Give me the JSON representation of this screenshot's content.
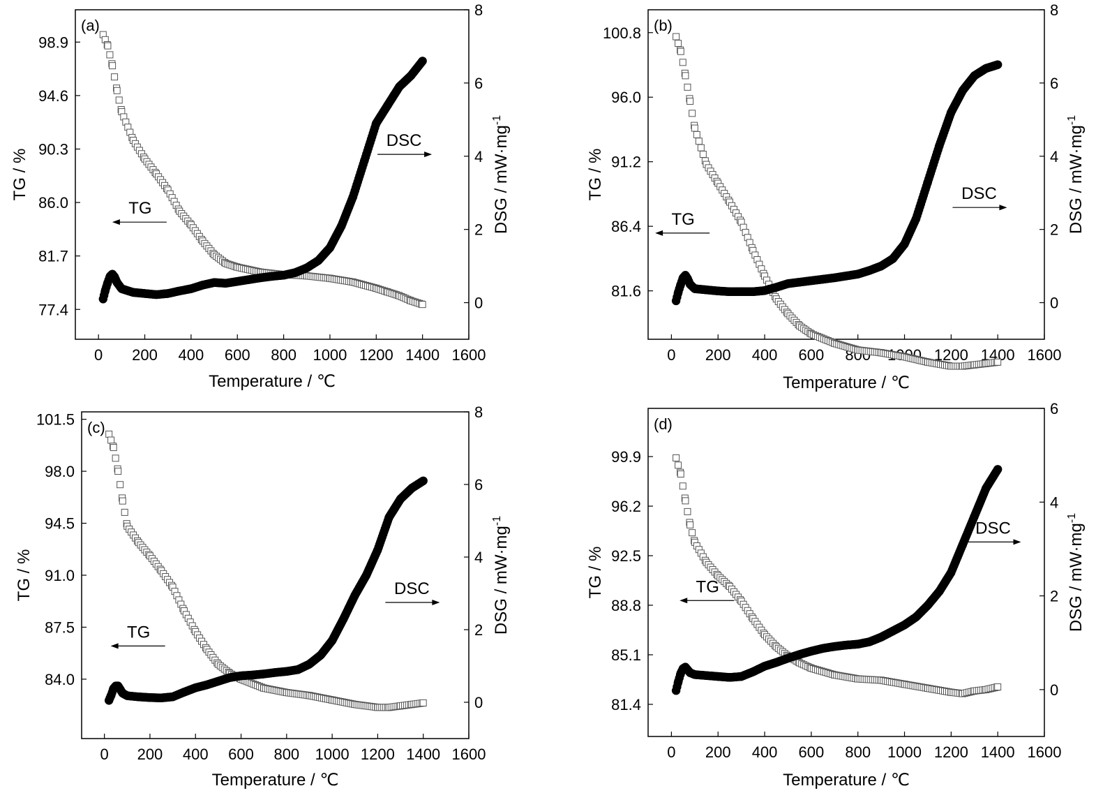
{
  "figure": {
    "xlabel": "Temperature / ℃",
    "ylabel_left": "TG / %",
    "ylabel_right_main": "DSG / mW·mg",
    "ylabel_right_sup": "-1",
    "tg_marker": "open-square",
    "dsc_marker": "filled-circle",
    "tg_color": "#555555",
    "dsc_color": "#000000"
  },
  "chart_data": [
    {
      "type": "scatter",
      "panel": "(a)",
      "xlim": [
        -100,
        1600
      ],
      "xticks": [
        0,
        200,
        400,
        600,
        800,
        1000,
        1200,
        1400,
        1600
      ],
      "left_axis": {
        "label": "TG / %",
        "lim": [
          75.0,
          101.5
        ],
        "ticks": [
          77.4,
          81.7,
          86.0,
          90.3,
          94.6,
          98.9
        ],
        "tick_labels": [
          "77.4",
          "81.7",
          "86.0",
          "90.3",
          "94.6",
          "98.9"
        ]
      },
      "right_axis": {
        "label": "DSG / mW·mg-1",
        "lim": [
          -1,
          8
        ],
        "ticks": [
          0,
          2,
          4,
          6,
          8
        ]
      },
      "annotations": [
        {
          "text": "TG",
          "x": 180,
          "y_right": 2.2,
          "arrow": "left"
        },
        {
          "text": "DSC",
          "x": 1320,
          "y_right": 4.05,
          "arrow": "right"
        }
      ],
      "series": [
        {
          "name": "TG",
          "axis": "left",
          "x": [
            20,
            40,
            60,
            80,
            100,
            150,
            200,
            250,
            300,
            350,
            400,
            450,
            500,
            550,
            600,
            700,
            800,
            900,
            1000,
            1100,
            1200,
            1250,
            1300,
            1350,
            1400
          ],
          "y": [
            99.5,
            98.6,
            97.0,
            95.0,
            93.3,
            91.0,
            89.5,
            88.3,
            87.0,
            85.3,
            84.2,
            82.9,
            81.8,
            81.1,
            80.8,
            80.4,
            80.2,
            80.1,
            79.9,
            79.6,
            79.1,
            78.8,
            78.5,
            78.1,
            77.8
          ]
        },
        {
          "name": "DSC",
          "axis": "right",
          "x": [
            20,
            30,
            40,
            50,
            60,
            70,
            80,
            100,
            150,
            200,
            250,
            300,
            350,
            400,
            450,
            500,
            550,
            600,
            650,
            700,
            750,
            800,
            850,
            900,
            950,
            1000,
            1050,
            1100,
            1150,
            1200,
            1250,
            1300,
            1350,
            1400
          ],
          "y": [
            0.1,
            0.35,
            0.55,
            0.72,
            0.78,
            0.7,
            0.55,
            0.38,
            0.28,
            0.25,
            0.22,
            0.25,
            0.32,
            0.38,
            0.48,
            0.55,
            0.53,
            0.58,
            0.63,
            0.68,
            0.72,
            0.75,
            0.82,
            0.95,
            1.15,
            1.5,
            2.1,
            2.9,
            3.9,
            4.9,
            5.4,
            5.9,
            6.2,
            6.6
          ]
        }
      ]
    },
    {
      "type": "scatter",
      "panel": "(b)",
      "xlim": [
        -100,
        1600
      ],
      "xticks": [
        0,
        200,
        400,
        600,
        800,
        1000,
        1200,
        1400,
        1600
      ],
      "left_axis": {
        "label": "TG / %",
        "lim": [
          78.0,
          102.5
        ],
        "ticks": [
          81.6,
          86.4,
          91.2,
          96.0,
          100.8
        ],
        "tick_labels": [
          "81.6",
          "86.4",
          "91.2",
          "96.0",
          "100.8"
        ]
      },
      "right_axis": {
        "label": "DSG / mW·mg-1",
        "lim": [
          -1,
          8
        ],
        "ticks": [
          0,
          2,
          4,
          6,
          8
        ]
      },
      "annotations": [
        {
          "text": "TG",
          "x": 50,
          "y_right": 1.9,
          "arrow": "left"
        },
        {
          "text": "DSC",
          "x": 1320,
          "y_right": 2.6,
          "arrow": "right"
        }
      ],
      "series": [
        {
          "name": "TG",
          "axis": "left",
          "x": [
            20,
            40,
            60,
            80,
            100,
            150,
            200,
            250,
            300,
            350,
            400,
            450,
            500,
            550,
            600,
            700,
            800,
            900,
            1000,
            1100,
            1200,
            1250,
            1300,
            1350,
            1400
          ],
          "y": [
            100.5,
            99.4,
            97.6,
            95.7,
            93.7,
            91.0,
            89.6,
            88.2,
            86.7,
            84.6,
            82.7,
            81.0,
            79.9,
            79.0,
            78.4,
            77.7,
            77.2,
            77.0,
            76.7,
            76.3,
            76.0,
            76.0,
            76.1,
            76.2,
            76.3
          ]
        },
        {
          "name": "DSC",
          "axis": "right",
          "x": [
            20,
            30,
            40,
            50,
            60,
            70,
            80,
            100,
            150,
            200,
            250,
            300,
            350,
            400,
            450,
            500,
            550,
            600,
            650,
            700,
            750,
            800,
            850,
            900,
            950,
            1000,
            1050,
            1100,
            1150,
            1200,
            1250,
            1300,
            1350,
            1400
          ],
          "y": [
            0.05,
            0.3,
            0.5,
            0.68,
            0.75,
            0.65,
            0.5,
            0.38,
            0.35,
            0.32,
            0.3,
            0.3,
            0.3,
            0.33,
            0.42,
            0.52,
            0.56,
            0.6,
            0.64,
            0.68,
            0.73,
            0.78,
            0.88,
            1.0,
            1.2,
            1.6,
            2.3,
            3.3,
            4.3,
            5.2,
            5.8,
            6.2,
            6.4,
            6.5
          ]
        }
      ]
    },
    {
      "type": "scatter",
      "panel": "(c)",
      "xlim": [
        -100,
        1600
      ],
      "xticks": [
        0,
        200,
        400,
        600,
        800,
        1000,
        1200,
        1400,
        1600
      ],
      "left_axis": {
        "label": "TG / %",
        "lim": [
          80.0,
          102.0
        ],
        "ticks": [
          84.0,
          87.5,
          91.0,
          94.5,
          98.0,
          101.5
        ],
        "tick_labels": [
          "84.0",
          "87.5",
          "91.0",
          "94.5",
          "98.0",
          "101.5"
        ]
      },
      "right_axis": {
        "label": "DSG / mW·mg-1",
        "lim": [
          -1,
          8
        ],
        "ticks": [
          0,
          2,
          4,
          6,
          8
        ]
      },
      "annotations": [
        {
          "text": "TG",
          "x": 150,
          "y_right": 1.55,
          "arrow": "left"
        },
        {
          "text": "DSC",
          "x": 1350,
          "y_right": 2.75,
          "arrow": "right"
        }
      ],
      "series": [
        {
          "name": "TG",
          "axis": "left",
          "x": [
            20,
            40,
            60,
            80,
            100,
            150,
            200,
            250,
            300,
            350,
            400,
            450,
            500,
            550,
            600,
            700,
            800,
            900,
            1000,
            1100,
            1200,
            1250,
            1300,
            1350,
            1400
          ],
          "y": [
            100.5,
            99.6,
            98.0,
            96.0,
            94.3,
            93.2,
            92.3,
            91.3,
            90.2,
            88.6,
            87.2,
            86.0,
            85.0,
            84.4,
            84.0,
            83.4,
            83.1,
            82.9,
            82.6,
            82.3,
            82.1,
            82.1,
            82.2,
            82.3,
            82.4
          ]
        },
        {
          "name": "DSC",
          "axis": "right",
          "x": [
            20,
            30,
            40,
            50,
            60,
            70,
            80,
            100,
            150,
            200,
            250,
            300,
            350,
            400,
            450,
            500,
            550,
            600,
            650,
            700,
            750,
            800,
            850,
            900,
            950,
            1000,
            1050,
            1100,
            1150,
            1200,
            1250,
            1300,
            1350,
            1400
          ],
          "y": [
            0.05,
            0.2,
            0.38,
            0.45,
            0.45,
            0.35,
            0.25,
            0.18,
            0.15,
            0.13,
            0.12,
            0.15,
            0.28,
            0.4,
            0.48,
            0.58,
            0.68,
            0.73,
            0.75,
            0.78,
            0.82,
            0.85,
            0.9,
            1.05,
            1.3,
            1.7,
            2.3,
            2.95,
            3.5,
            4.2,
            5.1,
            5.6,
            5.9,
            6.1
          ]
        }
      ]
    },
    {
      "type": "scatter",
      "panel": "(d)",
      "xlim": [
        -100,
        1600
      ],
      "xticks": [
        0,
        200,
        400,
        600,
        800,
        1000,
        1200,
        1400,
        1600
      ],
      "left_axis": {
        "label": "TG / %",
        "lim": [
          79.0,
          103.5
        ],
        "ticks": [
          81.4,
          85.1,
          88.8,
          92.5,
          96.2,
          99.9
        ],
        "tick_labels": [
          "81.4",
          "85.1",
          "88.8",
          "92.5",
          "96.2",
          "99.9"
        ]
      },
      "right_axis": {
        "label": "DSG / mW·mg-1",
        "lim": [
          -1,
          6
        ],
        "ticks": [
          0,
          2,
          4,
          6
        ]
      },
      "annotations": [
        {
          "text": "TG",
          "x": 155,
          "y_right": 1.9,
          "arrow": "left"
        },
        {
          "text": "DSC",
          "x": 1380,
          "y_right": 3.15,
          "arrow": "right"
        }
      ],
      "series": [
        {
          "name": "TG",
          "axis": "left",
          "x": [
            20,
            40,
            60,
            80,
            100,
            150,
            200,
            250,
            300,
            350,
            400,
            450,
            500,
            550,
            600,
            700,
            800,
            900,
            1000,
            1100,
            1200,
            1250,
            1300,
            1350,
            1400
          ],
          "y": [
            99.8,
            98.6,
            96.6,
            94.8,
            93.5,
            92.0,
            91.0,
            90.2,
            89.1,
            87.8,
            86.6,
            85.7,
            85.0,
            84.5,
            84.1,
            83.6,
            83.3,
            83.2,
            82.9,
            82.6,
            82.3,
            82.2,
            82.4,
            82.5,
            82.7
          ]
        },
        {
          "name": "DSC",
          "axis": "right",
          "x": [
            20,
            30,
            40,
            50,
            60,
            70,
            80,
            100,
            150,
            200,
            250,
            300,
            350,
            400,
            450,
            500,
            550,
            600,
            650,
            700,
            750,
            800,
            850,
            900,
            950,
            1000,
            1050,
            1100,
            1150,
            1200,
            1250,
            1300,
            1350,
            1400
          ],
          "y": [
            -0.02,
            0.18,
            0.35,
            0.45,
            0.48,
            0.42,
            0.36,
            0.32,
            0.3,
            0.28,
            0.26,
            0.28,
            0.38,
            0.5,
            0.58,
            0.67,
            0.75,
            0.82,
            0.88,
            0.92,
            0.95,
            0.97,
            1.02,
            1.12,
            1.25,
            1.38,
            1.55,
            1.8,
            2.1,
            2.5,
            3.1,
            3.7,
            4.3,
            4.7
          ]
        }
      ]
    }
  ]
}
